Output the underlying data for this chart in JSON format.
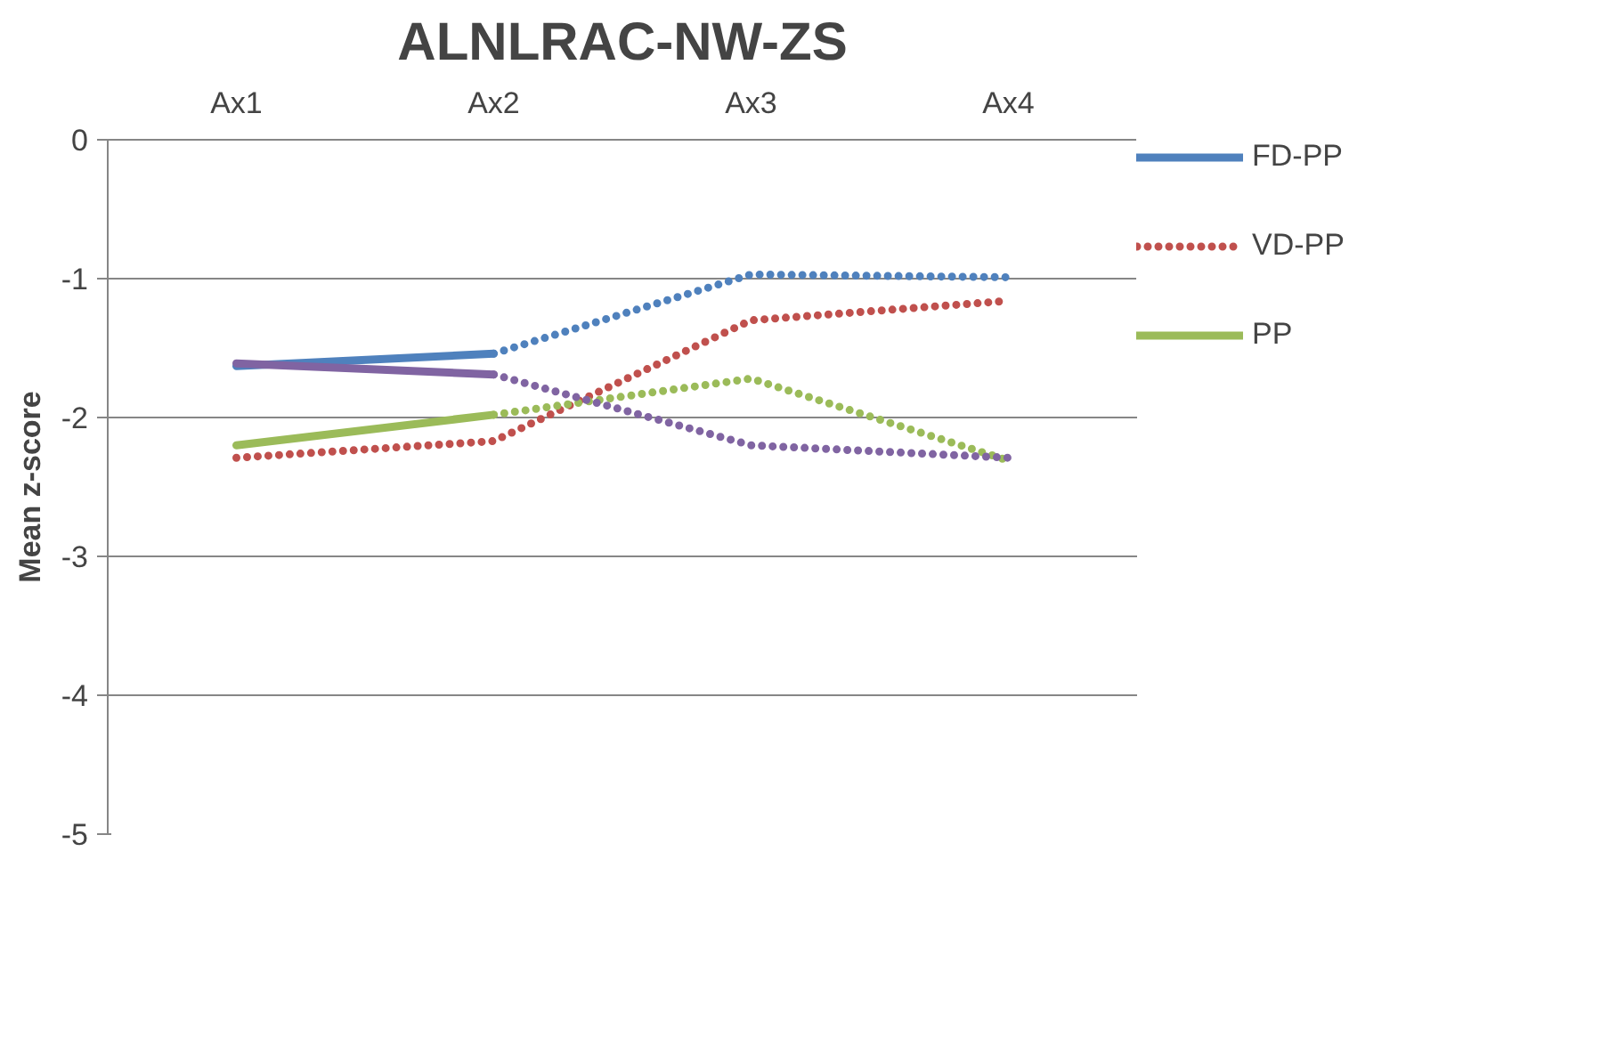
{
  "chart_data": {
    "type": "line",
    "title": "ALNLRAC-NW-ZS",
    "ylabel": "Mean z-score",
    "categories": [
      "Ax1",
      "Ax2",
      "Ax3",
      "Ax4"
    ],
    "ylim": [
      -5,
      0
    ],
    "yticks": [
      0,
      -1,
      -2,
      -3,
      -4,
      -5
    ],
    "grid": "y",
    "legend": "right",
    "series": [
      {
        "name": "FD-PP",
        "color": "#4f81bd",
        "line_style": "solid",
        "values": [
          -1.63,
          -1.54,
          null,
          null
        ]
      },
      {
        "color": "#4f81bd",
        "line_style": "dotted",
        "values": [
          null,
          -1.54,
          -0.97,
          -0.99
        ]
      },
      {
        "name": "VD-PP",
        "color": "#c0504d",
        "line_style": "dotted",
        "values": [
          -2.29,
          -2.17,
          -1.3,
          -1.16
        ]
      },
      {
        "name": "PP",
        "color": "#9bbb59",
        "line_style": "solid",
        "values": [
          -2.2,
          -1.98,
          null,
          null
        ]
      },
      {
        "color": "#9bbb59",
        "line_style": "dotted",
        "values": [
          null,
          -1.98,
          -1.72,
          -2.31
        ]
      },
      {
        "color": "#8064a2",
        "line_style": "solid",
        "values": [
          -1.61,
          -1.69,
          null,
          null
        ]
      },
      {
        "color": "#8064a2",
        "line_style": "dotted",
        "values": [
          null,
          -1.69,
          -2.2,
          -2.29
        ]
      }
    ]
  }
}
